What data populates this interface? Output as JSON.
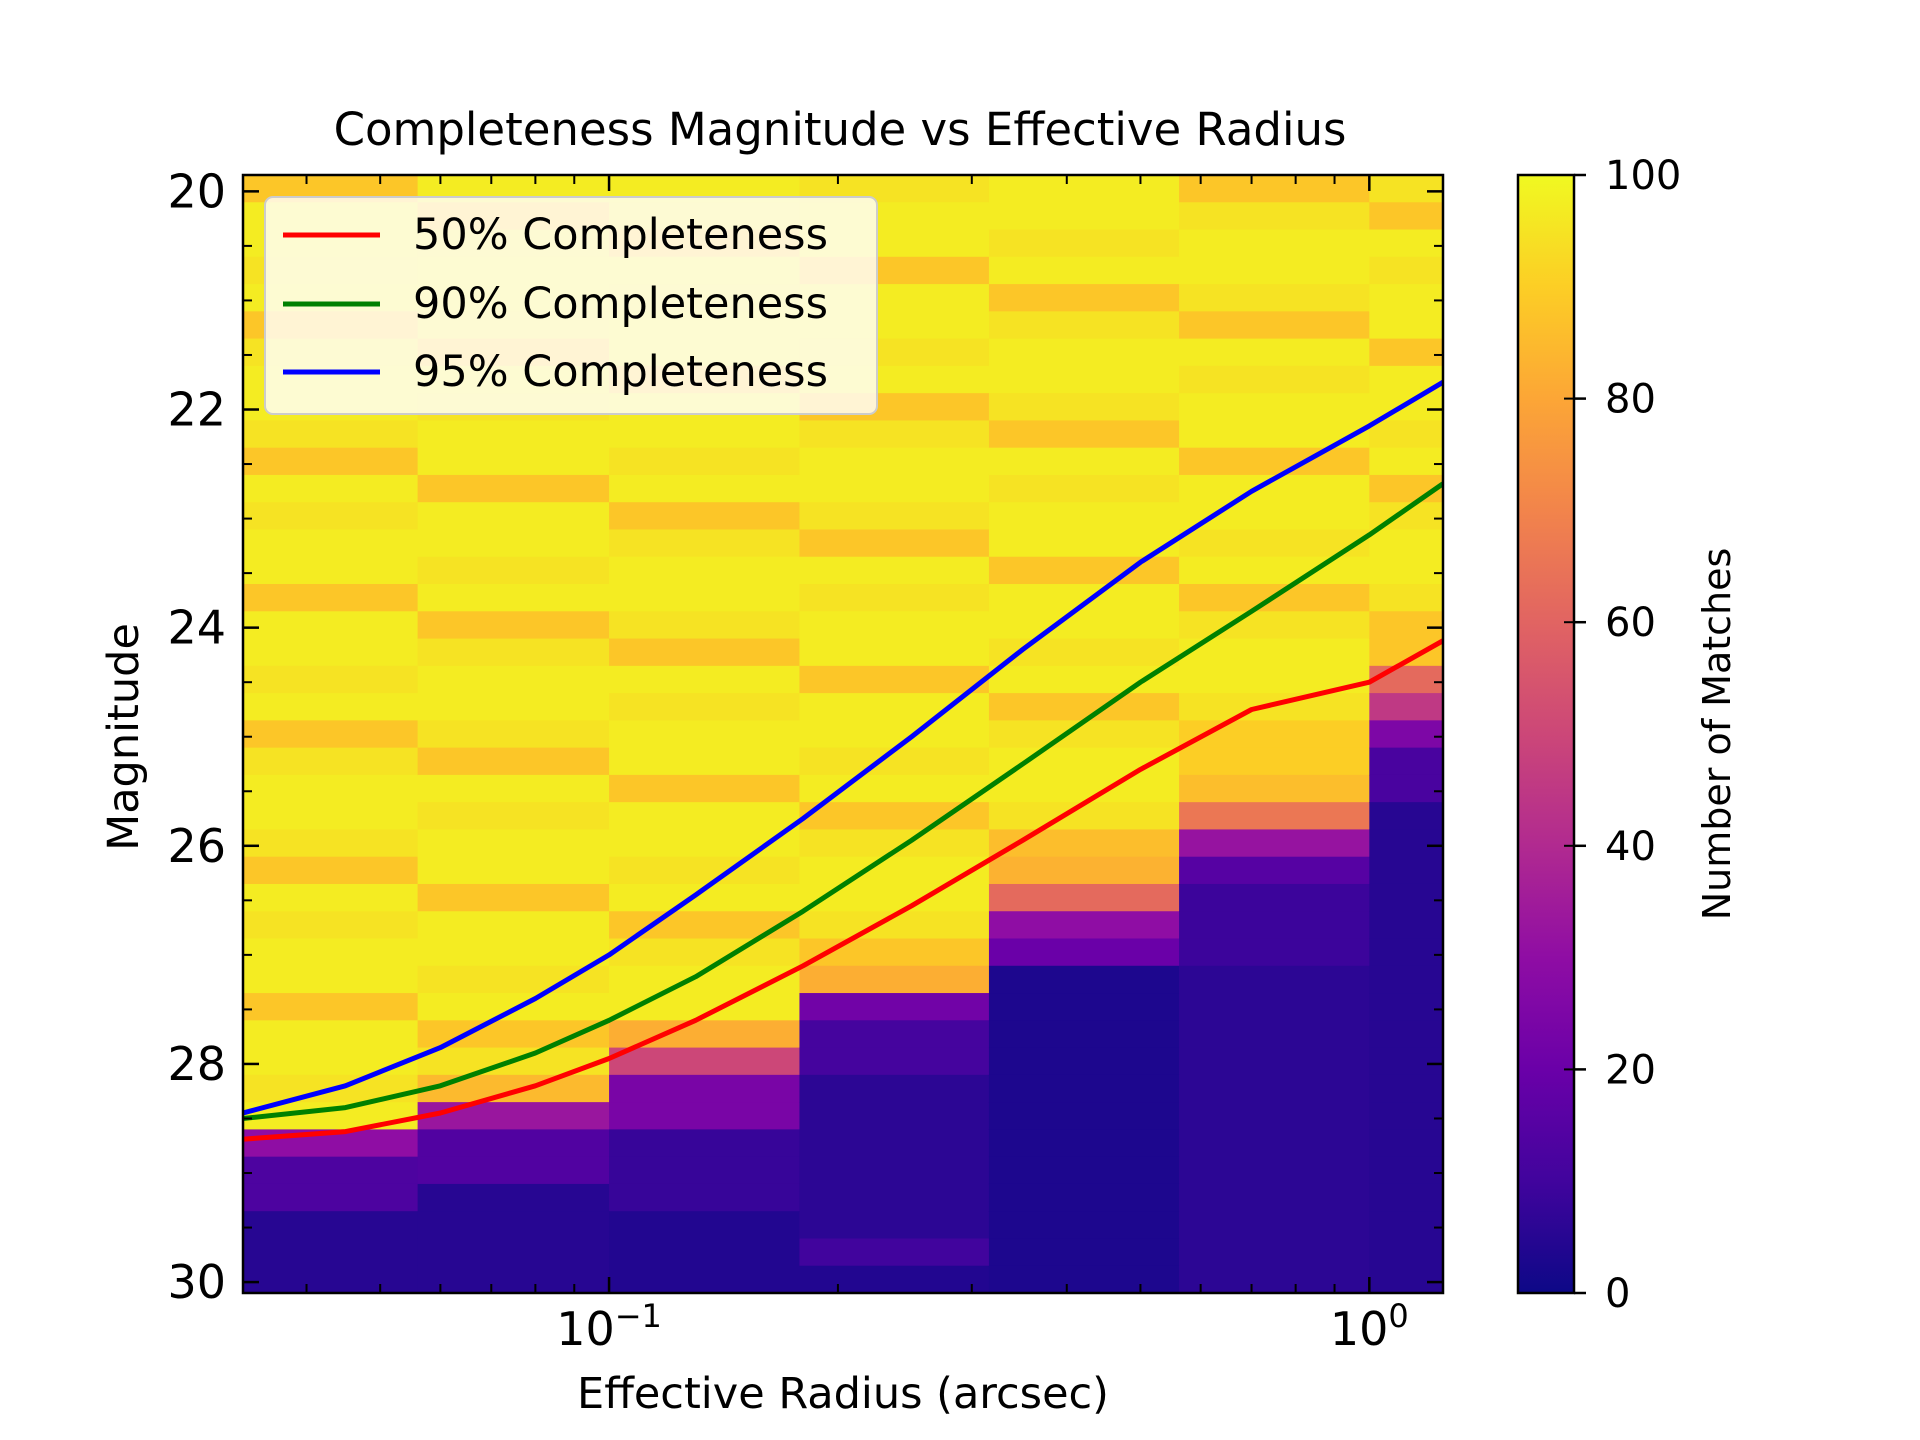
{
  "chart_data": {
    "type": "heatmap",
    "title": "Completeness Magnitude vs Effective Radius",
    "xlabel": "Effective Radius (arcsec)",
    "ylabel": "Magnitude",
    "colorbar_label": "Number of Matches",
    "x_scale": "log",
    "xlim": [
      0.033,
      1.25
    ],
    "ylim": [
      30.1,
      19.85
    ],
    "y_inverted": true,
    "clim": [
      0,
      100
    ],
    "colormap": "plasma",
    "x_ticks": [
      {
        "value": 0.1,
        "base": "10",
        "exp": "−1"
      },
      {
        "value": 1,
        "base": "10",
        "exp": "0"
      }
    ],
    "y_ticks": [
      20,
      22,
      24,
      26,
      28,
      30
    ],
    "colorbar_ticks": [
      0,
      20,
      40,
      60,
      80,
      100
    ],
    "x_bin_edges": [
      0.033,
      0.056,
      0.1,
      0.178,
      0.316,
      0.562,
      1.0,
      1.25
    ],
    "mag_bin_start": 19.85,
    "mag_bin_width": 0.25,
    "grid": false,
    "legend_position": "upper-left",
    "heatmap_columns": [
      {
        "x_range": [
          0.033,
          0.056
        ],
        "thresholds": [
          [
            28.5,
            52
          ],
          [
            28.72,
            30
          ],
          [
            28.95,
            13
          ],
          [
            29.45,
            5
          ]
        ]
      },
      {
        "x_range": [
          0.056,
          0.1
        ],
        "thresholds": [
          [
            28.05,
            85
          ],
          [
            28.3,
            33
          ],
          [
            28.72,
            14
          ],
          [
            29.2,
            5
          ]
        ]
      },
      {
        "x_range": [
          0.1,
          0.178
        ],
        "thresholds": [
          [
            27.65,
            82
          ],
          [
            27.9,
            50
          ],
          [
            28.2,
            24
          ],
          [
            28.5,
            13
          ],
          [
            28.72,
            8
          ],
          [
            29.45,
            4
          ]
        ]
      },
      {
        "x_range": [
          0.178,
          0.316
        ],
        "thresholds": [
          [
            27.2,
            82
          ],
          [
            27.45,
            22
          ],
          [
            27.7,
            11
          ],
          [
            28.0,
            6
          ],
          [
            29.7,
            10
          ],
          [
            29.95,
            4
          ]
        ]
      },
      {
        "x_range": [
          0.316,
          0.562
        ],
        "thresholds": [
          [
            25.8,
            86
          ],
          [
            26.2,
            83
          ],
          [
            26.45,
            62
          ],
          [
            26.7,
            30
          ],
          [
            26.95,
            20
          ],
          [
            27.2,
            3
          ]
        ]
      },
      {
        "x_range": [
          0.562,
          1.0
        ],
        "thresholds": [
          [
            24.95,
            90
          ],
          [
            25.45,
            86
          ],
          [
            25.7,
            66
          ],
          [
            25.95,
            32
          ],
          [
            26.2,
            15
          ],
          [
            26.45,
            9
          ],
          [
            27.0,
            6
          ]
        ]
      },
      {
        "x_range": [
          1.0,
          1.25
        ],
        "thresholds": [
          [
            24.2,
            88
          ],
          [
            24.45,
            62
          ],
          [
            24.7,
            45
          ],
          [
            24.95,
            25
          ],
          [
            25.2,
            12
          ],
          [
            25.7,
            5
          ]
        ]
      }
    ],
    "series": [
      {
        "name": "50% Completeness",
        "color": "#ff0000",
        "x": [
          0.033,
          0.045,
          0.06,
          0.08,
          0.1,
          0.13,
          0.18,
          0.25,
          0.35,
          0.5,
          0.7,
          1.0,
          1.25
        ],
        "y": [
          28.69,
          28.62,
          28.45,
          28.2,
          27.95,
          27.6,
          27.1,
          26.55,
          25.95,
          25.3,
          24.75,
          24.5,
          24.12
        ]
      },
      {
        "name": "90% Completeness",
        "color": "#008000",
        "x": [
          0.033,
          0.045,
          0.06,
          0.08,
          0.1,
          0.13,
          0.18,
          0.25,
          0.35,
          0.5,
          0.7,
          1.0,
          1.25
        ],
        "y": [
          28.5,
          28.4,
          28.2,
          27.9,
          27.6,
          27.2,
          26.6,
          25.95,
          25.25,
          24.5,
          23.85,
          23.15,
          22.68
        ]
      },
      {
        "name": "95% Completeness",
        "color": "#0000ff",
        "x": [
          0.033,
          0.045,
          0.06,
          0.08,
          0.1,
          0.13,
          0.18,
          0.25,
          0.35,
          0.5,
          0.7,
          1.0,
          1.25
        ],
        "y": [
          28.45,
          28.2,
          27.85,
          27.4,
          27.0,
          26.45,
          25.75,
          25.0,
          24.2,
          23.4,
          22.75,
          22.15,
          21.75
        ]
      }
    ]
  }
}
